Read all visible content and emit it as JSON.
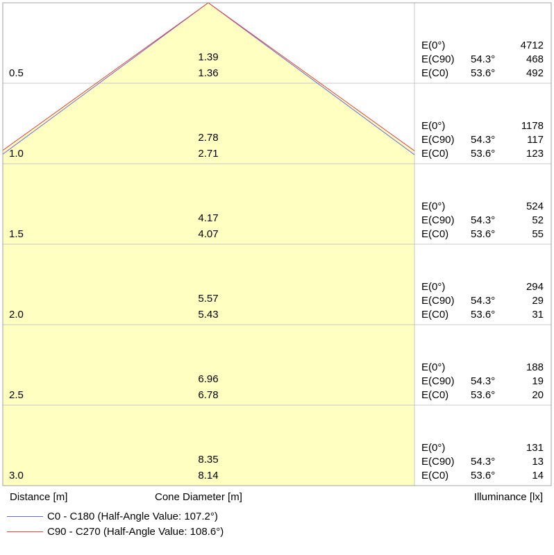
{
  "chart_data": {
    "type": "cone-diagram",
    "rows": [
      {
        "distance": "0.5",
        "cone_c90": "1.39",
        "cone_c0": "1.36",
        "e0": "4712",
        "ec90_angle": "54.3°",
        "ec90": "468",
        "ec0_angle": "53.6°",
        "ec0": "492"
      },
      {
        "distance": "1.0",
        "cone_c90": "2.78",
        "cone_c0": "2.71",
        "e0": "1178",
        "ec90_angle": "54.3°",
        "ec90": "117",
        "ec0_angle": "53.6°",
        "ec0": "123"
      },
      {
        "distance": "1.5",
        "cone_c90": "4.17",
        "cone_c0": "4.07",
        "e0": "524",
        "ec90_angle": "54.3°",
        "ec90": "52",
        "ec0_angle": "53.6°",
        "ec0": "55"
      },
      {
        "distance": "2.0",
        "cone_c90": "5.57",
        "cone_c0": "5.43",
        "e0": "294",
        "ec90_angle": "54.3°",
        "ec90": "29",
        "ec0_angle": "53.6°",
        "ec0": "31"
      },
      {
        "distance": "2.5",
        "cone_c90": "6.96",
        "cone_c0": "6.78",
        "e0": "188",
        "ec90_angle": "54.3°",
        "ec90": "19",
        "ec0_angle": "53.6°",
        "ec0": "20"
      },
      {
        "distance": "3.0",
        "cone_c90": "8.35",
        "cone_c0": "8.14",
        "e0": "131",
        "ec90_angle": "54.3°",
        "ec90": "13",
        "ec0_angle": "53.6°",
        "ec0": "14"
      }
    ],
    "e0_label": "E(0°)",
    "ec90_label": "E(C90)",
    "ec0_label": "E(C0)",
    "xlabel_distance": "Distance [m]",
    "xlabel_cone": "Cone Diameter [m]",
    "xlabel_illuminance": "Illuminance [lx]",
    "series": [
      {
        "name": "C0 - C180 (Half-Angle Value: 107.2°)",
        "color": "#6666dd",
        "half_angle": 107.2
      },
      {
        "name": "C90 - C270 (Half-Angle Value: 108.6°)",
        "color": "#dd4444",
        "half_angle": 108.6
      }
    ],
    "fill_color": "#ffffc2",
    "grid": true
  }
}
